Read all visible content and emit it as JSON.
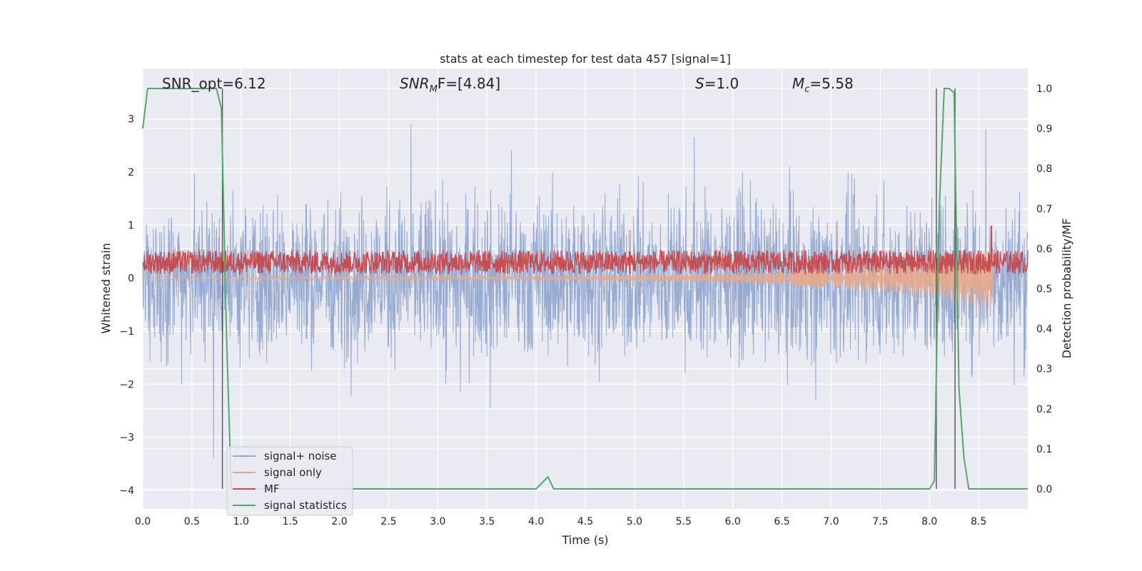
{
  "chart_data": {
    "type": "line",
    "title": "stats at each timestep for test data 457 [signal=1]",
    "xlabel": "Time (s)",
    "ylabel_left": "Whitened strain",
    "ylabel_right": "Detection probability/MF",
    "xlim": [
      0,
      9.0
    ],
    "ylim_left": [
      -4.35,
      3.95
    ],
    "ylim_right": [
      -0.05,
      1.05
    ],
    "x_ticks": [
      "0.0",
      "0.5",
      "1.0",
      "1.5",
      "2.0",
      "2.5",
      "3.0",
      "3.5",
      "4.0",
      "4.5",
      "5.0",
      "5.5",
      "6.0",
      "6.5",
      "7.0",
      "7.5",
      "8.0",
      "8.5"
    ],
    "y_ticks_left": [
      "−4",
      "−3",
      "−2",
      "−1",
      "0",
      "1",
      "2",
      "3"
    ],
    "y_ticks_right": [
      "0.0",
      "0.1",
      "0.2",
      "0.3",
      "0.4",
      "0.5",
      "0.6",
      "0.7",
      "0.8",
      "0.9",
      "1.0"
    ],
    "grid": true,
    "legend_position": "lower-left",
    "annotations": {
      "snr_opt": {
        "label": "SNR_opt=6.12",
        "x": 0.2
      },
      "snr_mf": {
        "base": "SNR",
        "sub": "M",
        "rest": "F=[4.84]",
        "x": 2.6
      },
      "s": {
        "base": "S",
        "rest": "=1.0",
        "x": 5.6
      },
      "mc": {
        "base": "M",
        "sub": "c",
        "rest": "=5.58",
        "x": 6.6
      }
    },
    "vertical_markers": [
      0.81,
      8.07,
      8.26
    ],
    "series": [
      {
        "name": "signal+ noise",
        "color": "#92a6cf",
        "kind": "noise",
        "x_range": [
          0,
          9.0
        ],
        "amplitude_range": [
          -3.4,
          3.4
        ]
      },
      {
        "name": "signal only",
        "color": "#e8a88a",
        "kind": "chirp",
        "x_end": 8.65,
        "peak": 0.55
      },
      {
        "name": "MF",
        "color": "#c44e52",
        "kind": "matched_filter",
        "center": 0.3,
        "spike_at": 8.63
      },
      {
        "name": "signal statistics",
        "color": "#55a868",
        "axis": "right",
        "x": [
          0,
          0.05,
          0.1,
          0.75,
          0.8,
          0.85,
          0.9,
          4.0,
          4.12,
          4.18,
          8.0,
          8.05,
          8.1,
          8.15,
          8.2,
          8.25,
          8.3,
          8.35,
          8.4,
          9.0
        ],
        "y": [
          0.9,
          1.0,
          1.0,
          1.0,
          0.95,
          0.4,
          0.0,
          0.0,
          0.03,
          0.0,
          0.0,
          0.02,
          0.7,
          1.0,
          1.0,
          0.99,
          0.25,
          0.08,
          0.0,
          0.0
        ]
      }
    ]
  }
}
